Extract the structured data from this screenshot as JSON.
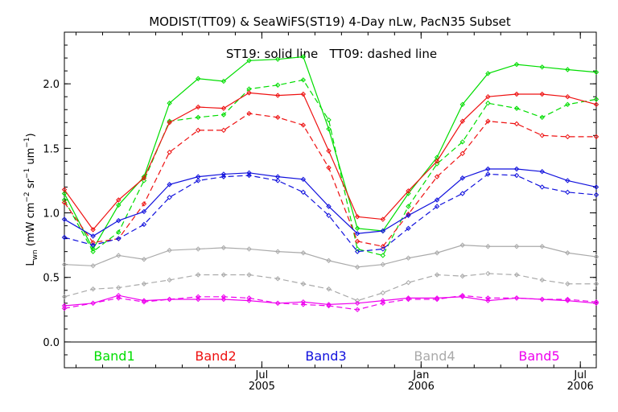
{
  "chart_data": {
    "type": "line",
    "title": "MODIST(TT09) & SeaWiFS(ST19) 4-Day nLw, PacN35 Subset",
    "annotation": "ST19: solid line   TT09: dashed line",
    "ylabel": "Lwn (mW cm-2 sr-1 um-1)",
    "ylabel_parts": {
      "base": "L",
      "sub": "wn",
      "open": " (mW cm",
      "exp1": "−2",
      "mid": " sr",
      "exp2": "−1",
      "mid2": " um",
      "exp3": "−1",
      "close": ")"
    },
    "ylim": [
      -0.2,
      2.4
    ],
    "yticks": [
      "0.0",
      "0.5",
      "1.0",
      "1.5",
      "2.0"
    ],
    "yticks_values": [
      0.0,
      0.5,
      1.0,
      1.5,
      2.0
    ],
    "xlim": [
      2004.88,
      2006.55
    ],
    "xticks": [
      {
        "month": "Jul",
        "year": "2005",
        "value": 2005.5
      },
      {
        "month": "Jan",
        "year": "2006",
        "value": 2006.0
      },
      {
        "month": "Jul",
        "year": "2006",
        "value": 2006.5
      }
    ],
    "grid": false,
    "legend": "bottom-inside",
    "x": [
      2004.88,
      2004.97,
      2005.05,
      2005.13,
      2005.21,
      2005.3,
      2005.38,
      2005.46,
      2005.55,
      2005.63,
      2005.71,
      2005.8,
      2005.88,
      2005.96,
      2006.05,
      2006.13,
      2006.21,
      2006.3,
      2006.38,
      2006.46,
      2006.55
    ],
    "series": [
      {
        "name": "Band1",
        "color": "#00dd00",
        "style": "solid",
        "values": [
          1.15,
          0.72,
          1.06,
          1.28,
          1.85,
          2.04,
          2.02,
          2.18,
          2.19,
          2.21,
          1.65,
          0.88,
          0.86,
          1.15,
          1.43,
          1.84,
          2.08,
          2.15,
          2.13,
          2.11,
          2.09
        ]
      },
      {
        "name": "Band1",
        "color": "#00dd00",
        "style": "dashed",
        "values": [
          1.1,
          0.7,
          0.85,
          1.25,
          1.71,
          1.74,
          1.76,
          1.96,
          1.99,
          2.03,
          1.72,
          0.72,
          0.67,
          1.05,
          1.38,
          1.55,
          1.85,
          1.81,
          1.74,
          1.84,
          1.88
        ]
      },
      {
        "name": "Band2",
        "color": "#ee1111",
        "style": "solid",
        "values": [
          1.18,
          0.87,
          1.1,
          1.27,
          1.7,
          1.82,
          1.81,
          1.93,
          1.91,
          1.92,
          1.48,
          0.97,
          0.95,
          1.17,
          1.4,
          1.71,
          1.9,
          1.92,
          1.92,
          1.9,
          1.84
        ]
      },
      {
        "name": "Band2",
        "color": "#ee1111",
        "style": "dashed",
        "values": [
          1.08,
          0.77,
          0.8,
          1.07,
          1.47,
          1.64,
          1.64,
          1.77,
          1.74,
          1.68,
          1.35,
          0.78,
          0.74,
          0.99,
          1.28,
          1.46,
          1.71,
          1.69,
          1.6,
          1.59,
          1.59
        ]
      },
      {
        "name": "Band3",
        "color": "#1111dd",
        "style": "solid",
        "values": [
          0.95,
          0.82,
          0.94,
          1.01,
          1.22,
          1.28,
          1.3,
          1.31,
          1.28,
          1.26,
          1.05,
          0.84,
          0.86,
          0.98,
          1.1,
          1.27,
          1.34,
          1.34,
          1.32,
          1.25,
          1.2
        ]
      },
      {
        "name": "Band3",
        "color": "#1111dd",
        "style": "dashed",
        "values": [
          0.81,
          0.75,
          0.8,
          0.91,
          1.12,
          1.25,
          1.28,
          1.29,
          1.25,
          1.16,
          0.98,
          0.7,
          0.72,
          0.88,
          1.05,
          1.15,
          1.3,
          1.29,
          1.2,
          1.16,
          1.14
        ]
      },
      {
        "name": "Band4",
        "color": "#aaaaaa",
        "style": "solid",
        "values": [
          0.6,
          0.59,
          0.67,
          0.64,
          0.71,
          0.72,
          0.73,
          0.72,
          0.7,
          0.69,
          0.63,
          0.58,
          0.6,
          0.65,
          0.69,
          0.75,
          0.74,
          0.74,
          0.74,
          0.69,
          0.66
        ]
      },
      {
        "name": "Band4",
        "color": "#aaaaaa",
        "style": "dashed",
        "values": [
          0.35,
          0.41,
          0.42,
          0.45,
          0.48,
          0.52,
          0.52,
          0.52,
          0.49,
          0.45,
          0.41,
          0.32,
          0.38,
          0.46,
          0.52,
          0.51,
          0.53,
          0.52,
          0.48,
          0.45,
          0.45
        ]
      },
      {
        "name": "Band5",
        "color": "#ee00ee",
        "style": "solid",
        "values": [
          0.28,
          0.3,
          0.36,
          0.32,
          0.33,
          0.33,
          0.33,
          0.32,
          0.3,
          0.31,
          0.29,
          0.3,
          0.32,
          0.34,
          0.34,
          0.35,
          0.32,
          0.34,
          0.33,
          0.32,
          0.3
        ]
      },
      {
        "name": "Band5",
        "color": "#ee00ee",
        "style": "dashed",
        "values": [
          0.26,
          0.3,
          0.34,
          0.31,
          0.33,
          0.35,
          0.35,
          0.34,
          0.3,
          0.29,
          0.28,
          0.25,
          0.3,
          0.33,
          0.33,
          0.36,
          0.34,
          0.34,
          0.33,
          0.33,
          0.31
        ]
      }
    ],
    "legend_entries": [
      {
        "label": "Band1",
        "color": "#00dd00"
      },
      {
        "label": "Band2",
        "color": "#ee1111"
      },
      {
        "label": "Band3",
        "color": "#1111dd"
      },
      {
        "label": "Band4",
        "color": "#aaaaaa"
      },
      {
        "label": "Band5",
        "color": "#ee00ee"
      }
    ]
  }
}
